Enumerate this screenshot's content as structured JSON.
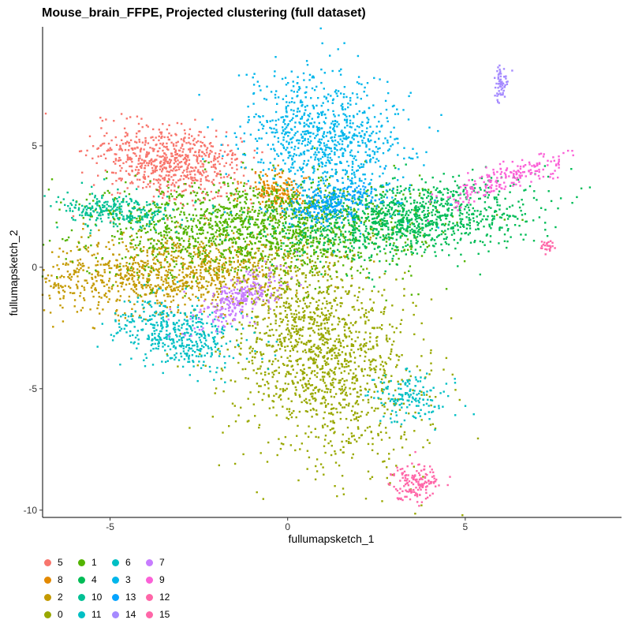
{
  "chart_data": {
    "type": "scatter",
    "title": "Mouse_brain_FFPE, Projected clustering (full dataset)",
    "xlabel": "fullumapsketch_1",
    "ylabel": "fullumapsketch_2",
    "xlim": [
      -6.9,
      9.4
    ],
    "ylim": [
      -10.3,
      9.9
    ],
    "xticks": [
      -5,
      0,
      5
    ],
    "yticks": [
      -10,
      -5,
      0,
      5
    ],
    "xtick_labels": [
      "-5",
      "0",
      "5"
    ],
    "ytick_labels": [
      "-10",
      "-5",
      "0",
      "5"
    ],
    "grid": false,
    "legend_position": "bottom",
    "series": [
      {
        "name": "5",
        "color": "#F8766D",
        "center": [
          -3.3,
          4.3
        ],
        "spread": [
          1.0,
          0.75
        ],
        "angle": -25,
        "npts": 700
      },
      {
        "name": "8",
        "color": "#E38900",
        "center": [
          -0.3,
          3.1
        ],
        "spread": [
          0.5,
          0.4
        ],
        "angle": -30,
        "npts": 180
      },
      {
        "name": "2",
        "color": "#C49A00",
        "center": [
          -3.3,
          -0.2
        ],
        "spread": [
          2.0,
          0.8
        ],
        "angle": 5,
        "npts": 1100
      },
      {
        "name": "0",
        "color": "#99A800",
        "center": [
          0.9,
          -3.5
        ],
        "spread": [
          1.3,
          2.2
        ],
        "angle": 15,
        "npts": 1500
      },
      {
        "name": "1",
        "color": "#53B400",
        "center": [
          -0.9,
          1.6
        ],
        "spread": [
          2.3,
          1.0
        ],
        "angle": 0,
        "npts": 1500
      },
      {
        "name": "4",
        "color": "#00BC56",
        "center": [
          3.3,
          2.0
        ],
        "spread": [
          1.8,
          0.75
        ],
        "angle": 8,
        "npts": 1100
      },
      {
        "name": "10",
        "color": "#00C094",
        "center": [
          -4.8,
          2.3
        ],
        "spread": [
          0.85,
          0.35
        ],
        "angle": 0,
        "npts": 260
      },
      {
        "name": "11",
        "color": "#00BFC4",
        "center": [
          3.4,
          -5.3
        ],
        "spread": [
          0.45,
          0.55
        ],
        "angle": 30,
        "npts": 150
      },
      {
        "name": "6",
        "color": "#00BFC4",
        "center": [
          -3.1,
          -2.8
        ],
        "spread": [
          0.9,
          0.6
        ],
        "angle": -30,
        "npts": 450
      },
      {
        "name": "3",
        "color": "#00B6EB",
        "center": [
          1.1,
          5.3
        ],
        "spread": [
          1.1,
          1.4
        ],
        "angle": 15,
        "npts": 900
      },
      {
        "name": "13",
        "color": "#06A4FF",
        "center": [
          1.2,
          2.6
        ],
        "spread": [
          0.7,
          0.35
        ],
        "angle": 20,
        "npts": 250
      },
      {
        "name": "14",
        "color": "#A58AFF",
        "center": [
          6.0,
          7.5
        ],
        "spread": [
          0.1,
          0.35
        ],
        "angle": 0,
        "npts": 60
      },
      {
        "name": "7",
        "color": "#C77CFF",
        "center": [
          -1.3,
          -1.3
        ],
        "spread": [
          0.8,
          0.35
        ],
        "angle": 45,
        "npts": 260
      },
      {
        "name": "9",
        "color": "#FB61D7",
        "center": [
          6.3,
          3.7
        ],
        "spread": [
          1.0,
          0.25
        ],
        "angle": 28,
        "npts": 200
      },
      {
        "name": "12",
        "color": "#FF66A8",
        "center": [
          7.3,
          0.9
        ],
        "spread": [
          0.12,
          0.12
        ],
        "angle": 0,
        "npts": 25
      },
      {
        "name": "15",
        "color": "#FF66A8",
        "center": [
          3.6,
          -8.8
        ],
        "spread": [
          0.35,
          0.38
        ],
        "angle": 0,
        "npts": 150
      }
    ],
    "legend": [
      [
        "5",
        "8",
        "2",
        "0"
      ],
      [
        "1",
        "4",
        "10",
        "11"
      ],
      [
        "6",
        "3",
        "13",
        "14"
      ],
      [
        "7",
        "9",
        "12",
        "15"
      ]
    ]
  }
}
